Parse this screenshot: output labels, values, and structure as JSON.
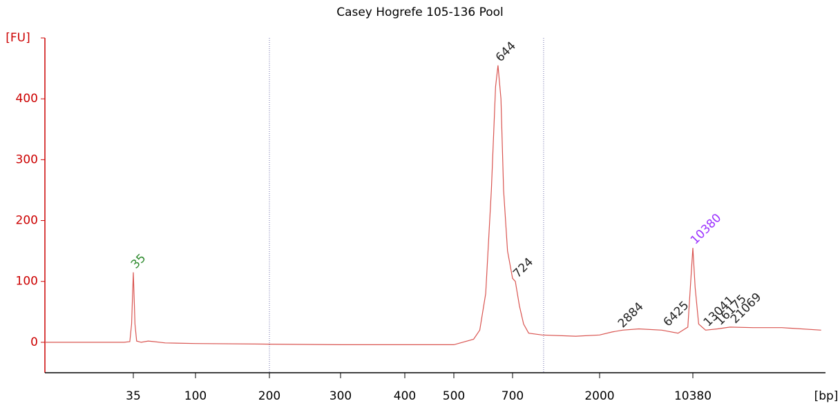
{
  "chart_data": {
    "type": "line",
    "title": "Casey Hogrefe 105-136 Pool",
    "y_label": "[FU]",
    "x_label": "[bp]",
    "x_log": true,
    "xlim": [
      8,
      108000
    ],
    "xticks": [
      35,
      100,
      200,
      300,
      400,
      500,
      700,
      2000,
      10380
    ],
    "ylim": [
      -50,
      500
    ],
    "yticks": [
      0,
      100,
      200,
      300,
      400
    ],
    "markers": [
      200,
      1018
    ],
    "series": [
      {
        "name": "Casey Hogrefe 105-136 Pool",
        "color": "#d9534f",
        "x": [
          8,
          30,
          33,
          34,
          35,
          36,
          37,
          40,
          45,
          50,
          60,
          100,
          200,
          300,
          400,
          500,
          560,
          580,
          600,
          620,
          635,
          644,
          655,
          665,
          680,
          700,
          724,
          760,
          800,
          850,
          1000,
          1500,
          2000,
          2500,
          3000,
          4000,
          6000,
          8000,
          9500,
          10000,
          10380,
          10800,
          11500,
          13000,
          16000,
          20000,
          30000,
          50000,
          100000
        ],
        "values": [
          0,
          0,
          1,
          30,
          115,
          30,
          2,
          0,
          2,
          1,
          -1,
          -2,
          -3,
          -4,
          -4,
          -4,
          5,
          20,
          80,
          250,
          420,
          455,
          400,
          250,
          150,
          105,
          100,
          60,
          30,
          15,
          12,
          10,
          12,
          17,
          20,
          22,
          20,
          15,
          25,
          100,
          155,
          90,
          30,
          20,
          22,
          25,
          24,
          24,
          20
        ]
      }
    ],
    "annotations": [
      {
        "x": 35,
        "y": 115,
        "value": 35,
        "color": "#2e8b2e"
      },
      {
        "x": 644,
        "y": 455,
        "value": 644,
        "color": "#222222"
      },
      {
        "x": 724,
        "y": 100,
        "value": 724,
        "color": "#222222"
      },
      {
        "x": 2884,
        "y": 18,
        "value": 2884,
        "color": "#222222"
      },
      {
        "x": 6425,
        "y": 20,
        "value": 6425,
        "color": "#222222"
      },
      {
        "x": 10380,
        "y": 155,
        "value": 10380,
        "color": "#9b30ff"
      },
      {
        "x": 13041,
        "y": 20,
        "value": 13041,
        "color": "#222222"
      },
      {
        "x": 16175,
        "y": 22,
        "value": 16175,
        "color": "#222222"
      },
      {
        "x": 21069,
        "y": 25,
        "value": 21069,
        "color": "#222222"
      }
    ]
  }
}
